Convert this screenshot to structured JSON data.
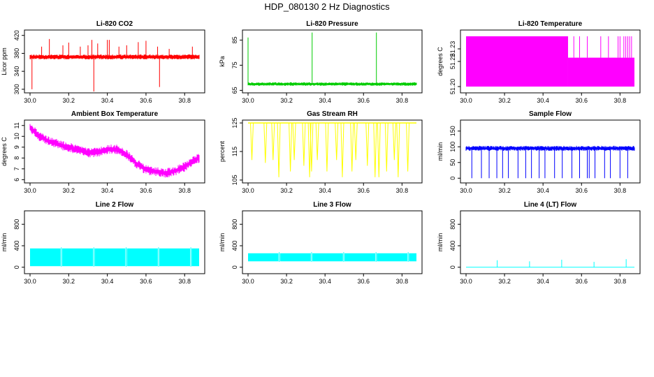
{
  "title": "HDP_080130  2 Hz Diagnostics",
  "chart_data": [
    {
      "type": "line",
      "title": "Li-820 CO2",
      "xlabel": "",
      "ylabel": "Licor ppm",
      "xlim": [
        30.0,
        30.875
      ],
      "ylim": [
        292,
        432
      ],
      "xticks": [
        "30.0",
        "30.2",
        "30.4",
        "30.6",
        "30.8"
      ],
      "yticks": [
        {
          "v": 300,
          "label": "300"
        },
        {
          "v": 340,
          "label": "340"
        },
        {
          "v": 380,
          "label": "380"
        },
        {
          "v": 420,
          "label": "420"
        }
      ],
      "series": [
        {
          "name": "Li-820 CO2",
          "color": "#ff0000",
          "base": 372,
          "noise": 3,
          "band": 5,
          "spikes": [
            [
              30.01,
              300
            ],
            [
              30.06,
              395
            ],
            [
              30.1,
              412
            ],
            [
              30.17,
              398
            ],
            [
              30.2,
              404
            ],
            [
              30.26,
              395
            ],
            [
              30.3,
              398
            ],
            [
              30.32,
              410
            ],
            [
              30.33,
              295
            ],
            [
              30.35,
              402
            ],
            [
              30.4,
              410
            ],
            [
              30.41,
              410
            ],
            [
              30.46,
              395
            ],
            [
              30.5,
              398
            ],
            [
              30.56,
              405
            ],
            [
              30.6,
              408
            ],
            [
              30.66,
              395
            ],
            [
              30.67,
              305
            ],
            [
              30.72,
              390
            ],
            [
              30.84,
              395
            ]
          ]
        }
      ]
    },
    {
      "type": "line",
      "title": "Li-820 Pressure",
      "xlabel": "",
      "ylabel": "kPa",
      "xlim": [
        30.0,
        30.875
      ],
      "ylim": [
        64,
        89
      ],
      "xticks": [
        "30.0",
        "30.2",
        "30.4",
        "30.6",
        "30.8"
      ],
      "yticks": [
        {
          "v": 65,
          "label": "65"
        },
        {
          "v": 75,
          "label": "75"
        },
        {
          "v": 85,
          "label": "85"
        }
      ],
      "series": [
        {
          "name": "Li-820 Pressure",
          "color": "#00cc00",
          "base": 67.5,
          "noise": 0.4,
          "band": 0.6,
          "spikes": [
            [
              30.0,
              86
            ],
            [
              30.333,
              88
            ],
            [
              30.667,
              88
            ]
          ]
        }
      ]
    },
    {
      "type": "line",
      "title": "Li-820 Temperature",
      "xlabel": "",
      "ylabel": "degrees C",
      "xlim": [
        30.0,
        30.875
      ],
      "ylim": [
        51.195,
        51.245
      ],
      "xticks": [
        "30.0",
        "30.2",
        "30.4",
        "30.6",
        "30.8"
      ],
      "yticks": [
        {
          "v": 51.2,
          "label": "51.20"
        },
        {
          "v": 51.22,
          "label": "51.22"
        },
        {
          "v": 51.23,
          "label": "51.23"
        }
      ],
      "series": [
        {
          "name": "Li-820 Temperature",
          "color": "#ff00ff",
          "low": 51.2,
          "high": 51.24,
          "step": 51.223,
          "step_at": 30.53,
          "spikes": [
            [
              30.56
            ],
            [
              30.59
            ],
            [
              30.63
            ],
            [
              30.7
            ],
            [
              30.74
            ],
            [
              30.79
            ],
            [
              30.8
            ],
            [
              30.82
            ],
            [
              30.83
            ],
            [
              30.84
            ],
            [
              30.85
            ],
            [
              30.86
            ]
          ]
        }
      ]
    },
    {
      "type": "line",
      "title": "Ambient Box Temperature",
      "xlabel": "",
      "ylabel": "degrees C",
      "xlim": [
        30.0,
        30.875
      ],
      "ylim": [
        5.7,
        11.5
      ],
      "xticks": [
        "30.0",
        "30.2",
        "30.4",
        "30.6",
        "30.8"
      ],
      "yticks": [
        {
          "v": 6,
          "label": "6"
        },
        {
          "v": 7,
          "label": "7"
        },
        {
          "v": 8,
          "label": "8"
        },
        {
          "v": 9,
          "label": "9"
        },
        {
          "v": 10,
          "label": "10"
        },
        {
          "v": 11,
          "label": "11"
        }
      ],
      "series": [
        {
          "name": "Ambient Box Temperature",
          "color": "#ff00ff",
          "band": 0.6,
          "curve": [
            [
              30.0,
              10.8
            ],
            [
              30.05,
              10.0
            ],
            [
              30.1,
              9.5
            ],
            [
              30.2,
              9.0
            ],
            [
              30.3,
              8.5
            ],
            [
              30.35,
              8.5
            ],
            [
              30.4,
              8.8
            ],
            [
              30.45,
              8.8
            ],
            [
              30.5,
              8.3
            ],
            [
              30.55,
              7.5
            ],
            [
              30.6,
              6.9
            ],
            [
              30.7,
              6.6
            ],
            [
              30.75,
              6.8
            ],
            [
              30.8,
              7.2
            ],
            [
              30.85,
              7.8
            ],
            [
              30.875,
              8.0
            ]
          ]
        }
      ]
    },
    {
      "type": "line",
      "title": "Gas Stream RH",
      "xlabel": "",
      "ylabel": "percent",
      "xlim": [
        30.0,
        30.875
      ],
      "ylim": [
        104,
        126
      ],
      "xticks": [
        "30.0",
        "30.2",
        "30.4",
        "30.6",
        "30.8"
      ],
      "yticks": [
        {
          "v": 105,
          "label": "105"
        },
        {
          "v": 115,
          "label": "115"
        },
        {
          "v": 125,
          "label": "125"
        }
      ],
      "series": [
        {
          "name": "Gas Stream RH",
          "color": "#ffff00",
          "base": 125,
          "dips": [
            [
              30.02,
              112
            ],
            [
              30.09,
              111
            ],
            [
              30.13,
              112
            ],
            [
              30.16,
              106
            ],
            [
              30.22,
              108
            ],
            [
              30.24,
              112
            ],
            [
              30.29,
              110
            ],
            [
              30.32,
              106
            ],
            [
              30.33,
              108
            ],
            [
              30.36,
              112
            ],
            [
              30.41,
              108
            ],
            [
              30.46,
              112
            ],
            [
              30.49,
              106
            ],
            [
              30.54,
              108
            ],
            [
              30.56,
              112
            ],
            [
              30.62,
              110
            ],
            [
              30.66,
              106
            ],
            [
              30.68,
              106
            ],
            [
              30.72,
              108
            ],
            [
              30.76,
              112
            ],
            [
              30.78,
              106
            ],
            [
              30.83,
              108
            ]
          ]
        }
      ]
    },
    {
      "type": "line",
      "title": "Sample Flow",
      "xlabel": "",
      "ylabel": "ml/min",
      "xlim": [
        30.0,
        30.875
      ],
      "ylim": [
        -15,
        185
      ],
      "xticks": [
        "30.0",
        "30.2",
        "30.4",
        "30.6",
        "30.8"
      ],
      "yticks": [
        {
          "v": 0,
          "label": "0"
        },
        {
          "v": 50,
          "label": "50"
        },
        {
          "v": 100,
          "label": "100"
        },
        {
          "v": 150,
          "label": "150"
        }
      ],
      "series": [
        {
          "name": "Sample Flow",
          "color": "#0000ff",
          "base": 95,
          "band": 10,
          "dips": [
            [
              30.03,
              0
            ],
            [
              30.08,
              0
            ],
            [
              30.12,
              0
            ],
            [
              30.16,
              0
            ],
            [
              30.19,
              0
            ],
            [
              30.22,
              0
            ],
            [
              30.27,
              0
            ],
            [
              30.31,
              0
            ],
            [
              30.34,
              0
            ],
            [
              30.38,
              0
            ],
            [
              30.41,
              0
            ],
            [
              30.46,
              0
            ],
            [
              30.5,
              0
            ],
            [
              30.55,
              0
            ],
            [
              30.59,
              0
            ],
            [
              30.63,
              0
            ],
            [
              30.64,
              0
            ],
            [
              30.67,
              0
            ],
            [
              30.72,
              0
            ],
            [
              30.75,
              0
            ],
            [
              30.8,
              0
            ],
            [
              30.84,
              0
            ]
          ]
        }
      ]
    },
    {
      "type": "line",
      "title": "Line 2 Flow",
      "xlabel": "",
      "ylabel": "ml/min",
      "xlim": [
        30.0,
        30.875
      ],
      "ylim": [
        -120,
        1050
      ],
      "xticks": [
        "30.0",
        "30.2",
        "30.4",
        "30.6",
        "30.8"
      ],
      "yticks": [
        {
          "v": 0,
          "label": "0"
        },
        {
          "v": 400,
          "label": "400"
        },
        {
          "v": 800,
          "label": "800"
        }
      ],
      "series": [
        {
          "name": "Line 2 Flow",
          "color": "#00ffff",
          "low": 20,
          "high": 350,
          "gaps": [
            30.162,
            30.33,
            30.497,
            30.665,
            30.832
          ]
        }
      ]
    },
    {
      "type": "line",
      "title": "Line 3 Flow",
      "xlabel": "",
      "ylabel": "ml/min",
      "xlim": [
        30.0,
        30.875
      ],
      "ylim": [
        -120,
        1050
      ],
      "xticks": [
        "30.0",
        "30.2",
        "30.4",
        "30.6",
        "30.8"
      ],
      "yticks": [
        {
          "v": 0,
          "label": "0"
        },
        {
          "v": 400,
          "label": "400"
        },
        {
          "v": 800,
          "label": "800"
        }
      ],
      "series": [
        {
          "name": "Line 3 Flow",
          "color": "#00ffff",
          "low": 110,
          "high": 260,
          "gaps": [
            30.162,
            30.33,
            30.497,
            30.665,
            30.832
          ]
        }
      ]
    },
    {
      "type": "line",
      "title": "Line 4 (LT) Flow",
      "xlabel": "",
      "ylabel": "ml/min",
      "xlim": [
        30.0,
        30.875
      ],
      "ylim": [
        -120,
        1050
      ],
      "xticks": [
        "30.0",
        "30.2",
        "30.4",
        "30.6",
        "30.8"
      ],
      "yticks": [
        {
          "v": 0,
          "label": "0"
        },
        {
          "v": 400,
          "label": "400"
        },
        {
          "v": 800,
          "label": "800"
        }
      ],
      "series": [
        {
          "name": "Line 4 (LT) Flow",
          "color": "#00ffff",
          "base": 0,
          "spikes": [
            [
              30.162,
              130
            ],
            [
              30.33,
              110
            ],
            [
              30.497,
              140
            ],
            [
              30.665,
              100
            ],
            [
              30.832,
              150
            ]
          ]
        }
      ]
    }
  ]
}
